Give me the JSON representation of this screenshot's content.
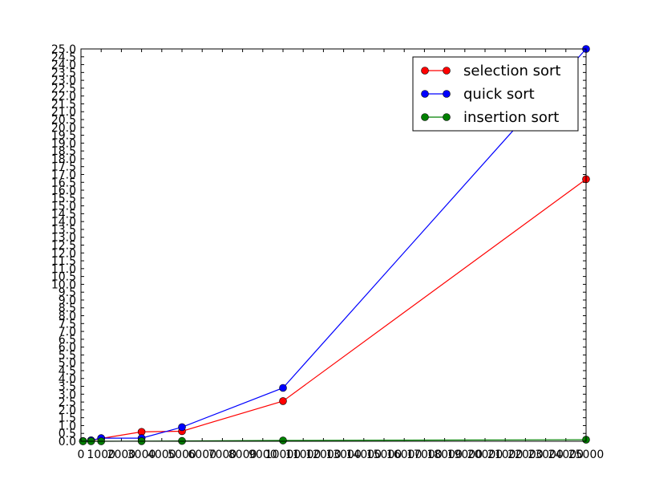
{
  "chart_data": {
    "type": "line",
    "title": "",
    "xlabel": "",
    "ylabel": "",
    "xlim": [
      0,
      25000
    ],
    "ylim": [
      0,
      25
    ],
    "x": [
      100,
      500,
      1000,
      3000,
      5000,
      10000,
      25000
    ],
    "series": [
      {
        "name": "selection sort",
        "color": "#ff0000",
        "values": [
          0.01,
          0.05,
          0.18,
          0.6,
          0.64,
          2.56,
          16.7
        ]
      },
      {
        "name": "quick sort",
        "color": "#0000ff",
        "values": [
          0.01,
          0.06,
          0.2,
          0.2,
          0.9,
          3.4,
          25.0
        ]
      },
      {
        "name": "insertion sort",
        "color": "#008000",
        "values": [
          0.0,
          0.0,
          0.0,
          0.01,
          0.02,
          0.05,
          0.1
        ]
      }
    ],
    "x_tick_text": "01000",
    "x_tick_values": [
      "0",
      "1000",
      "2000",
      "3000",
      "4000",
      "5000",
      "6000",
      "7000",
      "8000",
      "9000",
      "10000",
      "11000",
      "12000",
      "13000",
      "14000",
      "15000",
      "16000",
      "17000",
      "18000",
      "19000",
      "20000",
      "21000",
      "22000",
      "23000",
      "24000",
      "25000"
    ],
    "y_tick_values": [
      "0.0",
      "0.5",
      "1.0",
      "1.5",
      "2.0",
      "2.5",
      "3.0",
      "3.5",
      "4.0",
      "4.5",
      "5.0",
      "5.5",
      "6.0",
      "6.5",
      "7.0",
      "7.5",
      "8.0",
      "8.5",
      "9.0",
      "9.5",
      "10.0",
      "10.5",
      "11.0",
      "11.5",
      "12.0",
      "12.5",
      "13.0",
      "13.5",
      "14.0",
      "14.5",
      "15.0",
      "15.5",
      "16.0",
      "16.5",
      "17.0",
      "17.5",
      "18.0",
      "18.5",
      "19.0",
      "19.5",
      "20.0",
      "20.5",
      "21.0",
      "21.5",
      "22.0",
      "22.5",
      "23.0",
      "23.5",
      "24.0",
      "24.5",
      "25.0"
    ],
    "grid": false,
    "legend": "top-right"
  }
}
